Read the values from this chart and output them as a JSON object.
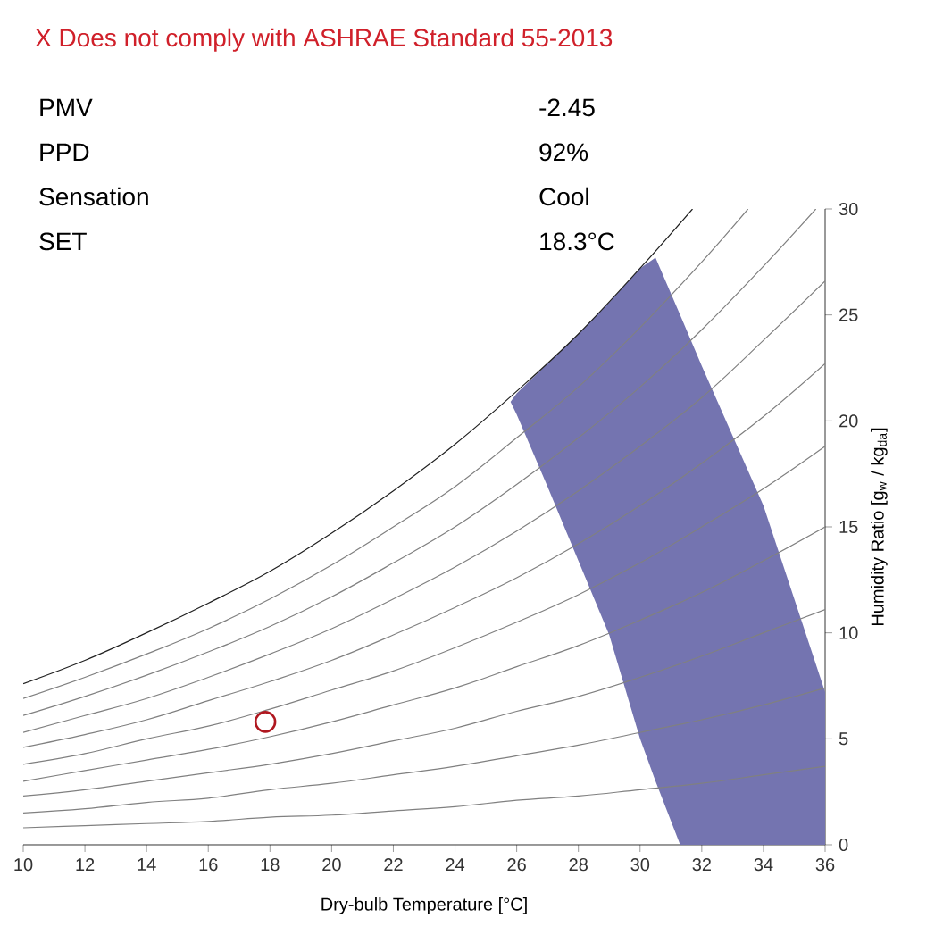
{
  "chart_data": {
    "type": "line",
    "title": "X   Does not comply with ASHRAE Standard 55-2013",
    "annotations": [
      "PMV",
      "-2.45",
      "PPD",
      "92%",
      "Sensation",
      "Cool",
      "SET",
      "18.3°C"
    ],
    "xlabel": "Dry-bulb Temperature [°C]",
    "ylabel": "Humidity Ratio [g$_{w}$ / kg$_{da}$]",
    "xlim": [
      10,
      36
    ],
    "ylim": [
      0,
      30
    ],
    "xticks": [
      10,
      12,
      14,
      16,
      18,
      20,
      22,
      24,
      26,
      28,
      30,
      32,
      34,
      36
    ],
    "yticks": [
      0,
      5,
      10,
      15,
      20,
      25,
      30
    ],
    "grid": false,
    "marker": "none",
    "line_style": "solid",
    "series": [
      {
        "type": "area",
        "color": "#7474b0",
        "x": [
          25.8,
          26,
          27,
          28,
          29,
          30,
          30.5,
          31.3,
          32,
          34,
          36,
          36,
          31.3,
          30.5,
          30,
          29,
          28,
          27,
          26
        ],
        "values": [
          20.9,
          21.3,
          22.7,
          24.1,
          25.6,
          27.2,
          27.7,
          25.0,
          22.6,
          16.0,
          7.2,
          0,
          0,
          3.0,
          5.0,
          9.9,
          13.4,
          16.9,
          20.3
        ]
      },
      {
        "color": "#808080",
        "x": [
          10,
          12,
          14,
          16,
          18,
          20,
          22,
          24,
          26,
          28,
          30,
          32,
          34,
          36
        ],
        "values": [
          0.8,
          0.9,
          1.0,
          1.1,
          1.3,
          1.4,
          1.6,
          1.8,
          2.1,
          2.3,
          2.6,
          2.9,
          3.3,
          3.7
        ]
      },
      {
        "color": "#808080",
        "x": [
          10,
          12,
          14,
          16,
          18,
          20,
          22,
          24,
          26,
          28,
          30,
          32,
          34,
          36
        ],
        "values": [
          1.5,
          1.7,
          2.0,
          2.2,
          2.6,
          2.9,
          3.3,
          3.7,
          4.2,
          4.7,
          5.3,
          5.9,
          6.6,
          7.4
        ]
      },
      {
        "color": "#808080",
        "x": [
          10,
          12,
          14,
          16,
          18,
          20,
          22,
          24,
          26,
          28,
          30,
          32,
          34,
          36
        ],
        "values": [
          2.3,
          2.6,
          3.0,
          3.4,
          3.8,
          4.3,
          4.9,
          5.5,
          6.3,
          7.0,
          7.9,
          8.9,
          10.0,
          11.1
        ]
      },
      {
        "color": "#808080",
        "x": [
          10,
          12,
          14,
          16,
          18,
          20,
          22,
          24,
          26,
          28,
          30,
          32,
          34,
          36
        ],
        "values": [
          3.0,
          3.5,
          4.0,
          4.5,
          5.1,
          5.8,
          6.6,
          7.4,
          8.4,
          9.4,
          10.6,
          11.9,
          13.4,
          15.0
        ]
      },
      {
        "color": "#808080",
        "x": [
          10,
          12,
          14,
          16,
          18,
          20,
          22,
          24,
          26,
          28,
          30,
          32,
          34,
          36
        ],
        "values": [
          3.8,
          4.3,
          5.0,
          5.6,
          6.4,
          7.3,
          8.2,
          9.3,
          10.5,
          11.8,
          13.3,
          15.0,
          16.8,
          18.8
        ]
      },
      {
        "color": "#808080",
        "x": [
          10,
          12,
          14,
          16,
          18,
          20,
          22,
          24,
          26,
          28,
          30,
          32,
          34,
          36
        ],
        "values": [
          4.6,
          5.2,
          5.9,
          6.8,
          7.7,
          8.7,
          9.9,
          11.2,
          12.6,
          14.2,
          16.0,
          18.0,
          20.2,
          22.7
        ]
      },
      {
        "color": "#808080",
        "x": [
          10,
          12,
          14,
          16,
          18,
          20,
          22,
          24,
          26,
          28,
          30,
          32,
          34,
          36
        ],
        "values": [
          5.3,
          6.1,
          6.9,
          7.9,
          9.0,
          10.2,
          11.6,
          13.1,
          14.8,
          16.7,
          18.8,
          21.1,
          23.8,
          26.6
        ]
      },
      {
        "color": "#808080",
        "x": [
          10,
          12,
          14,
          16,
          18,
          20,
          22,
          24,
          26,
          28,
          30,
          32,
          34,
          35.7
        ],
        "values": [
          6.1,
          7.0,
          8.0,
          9.1,
          10.3,
          11.7,
          13.3,
          15.0,
          17.0,
          19.2,
          21.6,
          24.3,
          27.3,
          30
        ]
      },
      {
        "color": "#808080",
        "x": [
          10,
          12,
          14,
          16,
          18,
          20,
          22,
          24,
          26,
          28,
          30,
          32,
          33.5
        ],
        "values": [
          6.9,
          7.9,
          9.0,
          10.2,
          11.6,
          13.2,
          15.0,
          16.9,
          19.2,
          21.6,
          24.4,
          27.5,
          30
        ]
      },
      {
        "color": "#202020",
        "x": [
          10,
          12,
          14,
          16,
          18,
          20,
          22,
          24,
          26,
          28,
          30,
          31.7
        ],
        "values": [
          7.6,
          8.7,
          10.0,
          11.4,
          12.9,
          14.7,
          16.7,
          18.9,
          21.4,
          24.1,
          27.2,
          30
        ]
      },
      {
        "type": "scatter",
        "color": "#b01820",
        "marker": "circle",
        "x": [
          17.85
        ],
        "values": [
          5.8
        ]
      }
    ]
  }
}
